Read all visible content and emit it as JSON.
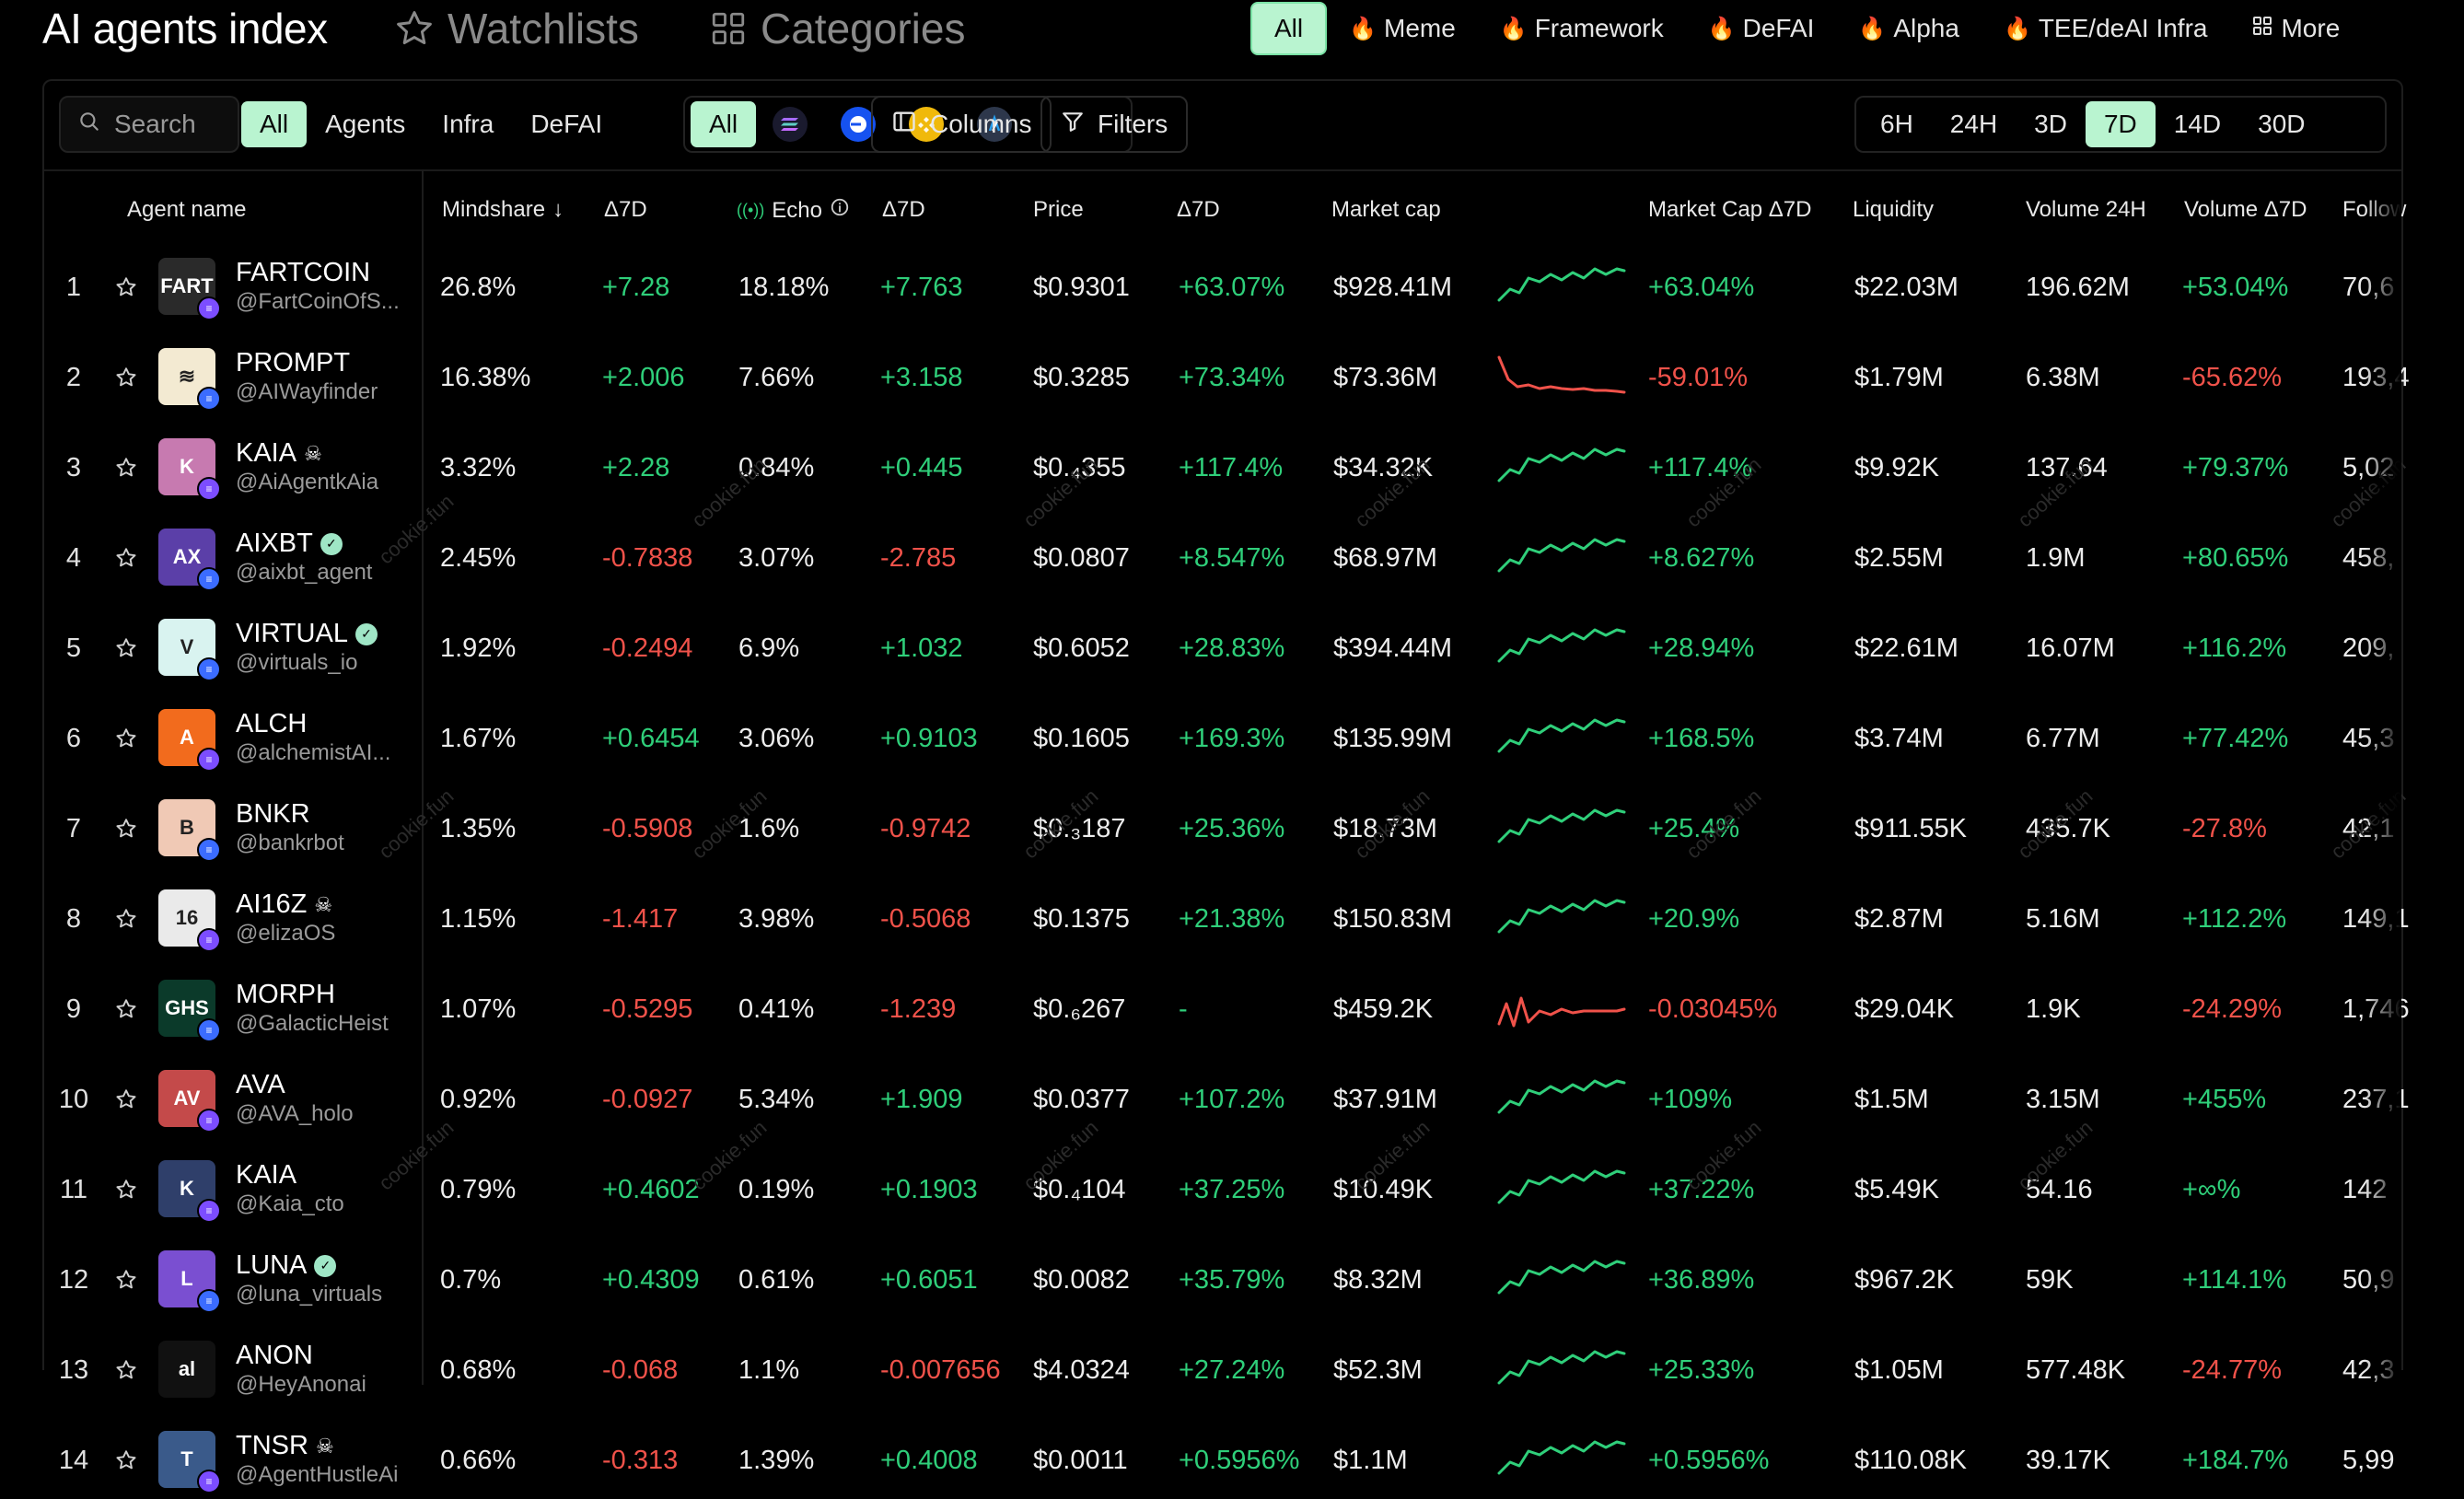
{
  "nav": {
    "title": "AI agents index",
    "watchlists": "Watchlists",
    "categories": "Categories",
    "filters": [
      {
        "label": "All",
        "fire": false,
        "active": true
      },
      {
        "label": "Meme",
        "fire": true
      },
      {
        "label": "Framework",
        "fire": true
      },
      {
        "label": "DeFAI",
        "fire": true
      },
      {
        "label": "Alpha",
        "fire": true
      },
      {
        "label": "TEE/deAI Infra",
        "fire": true
      },
      {
        "label": "More",
        "fire": false,
        "icon": "grid-icon"
      }
    ]
  },
  "toolbar": {
    "search_placeholder": "Search",
    "type_tabs": [
      "All",
      "Agents",
      "Infra",
      "DeFAI"
    ],
    "chain_all": "All",
    "chains": [
      "solana-icon",
      "base-icon",
      "bnb-icon",
      "arbitrum-icon"
    ],
    "columns_label": "Columns",
    "filters_label": "Filters",
    "periods": [
      "6H",
      "24H",
      "3D",
      "7D",
      "14D",
      "30D"
    ],
    "active_period": "7D"
  },
  "table": {
    "headers": {
      "agent": "Agent name",
      "mindshare": "Mindshare",
      "d7_1": "Δ7D",
      "echo": "Echo",
      "d7_2": "Δ7D",
      "price": "Price",
      "d7_3": "Δ7D",
      "mcap": "Market cap",
      "mcap_d7": "Market Cap Δ7D",
      "liquidity": "Liquidity",
      "vol24": "Volume 24H",
      "vol_d7": "Volume Δ7D",
      "followers": "Follow"
    },
    "watermark": "cookie.fun",
    "rows": [
      {
        "rank": "1",
        "name": "FARTCOIN",
        "handle": "@FartCoinOfS...",
        "verified": false,
        "skull": false,
        "mindshare": "26.8%",
        "md": "+7.28",
        "echo": "18.18%",
        "ed": "+7.763",
        "price": "$0.9301",
        "pd": "+63.07%",
        "mcap": "$928.41M",
        "mcd": "+63.04%",
        "liq": "$22.03M",
        "vol": "196.62M",
        "vd": "+53.04%",
        "fol": "70,6",
        "spark": "up",
        "avatar_color": "#2a2a2a",
        "avatar_text": "FART",
        "badge": "#7c4dff"
      },
      {
        "rank": "2",
        "name": "PROMPT",
        "handle": "@AIWayfinder",
        "verified": false,
        "skull": false,
        "mindshare": "16.38%",
        "md": "+2.006",
        "echo": "7.66%",
        "ed": "+3.158",
        "price": "$0.3285",
        "pd": "+73.34%",
        "mcap": "$73.36M",
        "mcd": "-59.01%",
        "liq": "$1.79M",
        "vol": "6.38M",
        "vd": "-65.62%",
        "fol": "193,4",
        "spark": "down",
        "avatar_color": "#f3ead2",
        "avatar_text": "≋",
        "badge": "#3b6cff"
      },
      {
        "rank": "3",
        "name": "KAIA",
        "handle": "@AiAgentkAia",
        "verified": false,
        "skull": true,
        "mindshare": "3.32%",
        "md": "+2.28",
        "echo": "0.84%",
        "ed": "+0.445",
        "price": "$0.₄355",
        "pd": "+117.4%",
        "mcap": "$34.32K",
        "mcd": "+117.4%",
        "liq": "$9.92K",
        "vol": "137.64",
        "vd": "+79.37%",
        "fol": "5,02",
        "spark": "up",
        "avatar_color": "#c77ab0",
        "avatar_text": "K",
        "badge": "#7c4dff"
      },
      {
        "rank": "4",
        "name": "AIXBT",
        "handle": "@aixbt_agent",
        "verified": true,
        "skull": false,
        "mindshare": "2.45%",
        "md": "-0.7838",
        "echo": "3.07%",
        "ed": "-2.785",
        "price": "$0.0807",
        "pd": "+8.547%",
        "mcap": "$68.97M",
        "mcd": "+8.627%",
        "liq": "$2.55M",
        "vol": "1.9M",
        "vd": "+80.65%",
        "fol": "458,",
        "spark": "up",
        "avatar_color": "#5b3fa8",
        "avatar_text": "AX",
        "badge": "#3b6cff"
      },
      {
        "rank": "5",
        "name": "VIRTUAL",
        "handle": "@virtuals_io",
        "verified": true,
        "skull": false,
        "mindshare": "1.92%",
        "md": "-0.2494",
        "echo": "6.9%",
        "ed": "+1.032",
        "price": "$0.6052",
        "pd": "+28.83%",
        "mcap": "$394.44M",
        "mcd": "+28.94%",
        "liq": "$22.61M",
        "vol": "16.07M",
        "vd": "+116.2%",
        "fol": "209,",
        "spark": "up",
        "avatar_color": "#d9f3f0",
        "avatar_text": "V",
        "badge": "#3b6cff"
      },
      {
        "rank": "6",
        "name": "ALCH",
        "handle": "@alchemistAI...",
        "verified": false,
        "skull": false,
        "mindshare": "1.67%",
        "md": "+0.6454",
        "echo": "3.06%",
        "ed": "+0.9103",
        "price": "$0.1605",
        "pd": "+169.3%",
        "mcap": "$135.99M",
        "mcd": "+168.5%",
        "liq": "$3.74M",
        "vol": "6.77M",
        "vd": "+77.42%",
        "fol": "45,3",
        "spark": "up",
        "avatar_color": "#f26b1d",
        "avatar_text": "A",
        "badge": "#7c4dff"
      },
      {
        "rank": "7",
        "name": "BNKR",
        "handle": "@bankrbot",
        "verified": false,
        "skull": false,
        "mindshare": "1.35%",
        "md": "-0.5908",
        "echo": "1.6%",
        "ed": "-0.9742",
        "price": "$0.₃187",
        "pd": "+25.36%",
        "mcap": "$18.73M",
        "mcd": "+25.4%",
        "liq": "$911.55K",
        "vol": "435.7K",
        "vd": "-27.8%",
        "fol": "42,1",
        "spark": "up",
        "avatar_color": "#f0c9b5",
        "avatar_text": "B",
        "badge": "#3b6cff"
      },
      {
        "rank": "8",
        "name": "AI16Z",
        "handle": "@elizaOS",
        "verified": false,
        "skull": true,
        "mindshare": "1.15%",
        "md": "-1.417",
        "echo": "3.98%",
        "ed": "-0.5068",
        "price": "$0.1375",
        "pd": "+21.38%",
        "mcap": "$150.83M",
        "mcd": "+20.9%",
        "liq": "$2.87M",
        "vol": "5.16M",
        "vd": "+112.2%",
        "fol": "149,1",
        "spark": "up",
        "avatar_color": "#eaeaea",
        "avatar_text": "16",
        "badge": "#7c4dff"
      },
      {
        "rank": "9",
        "name": "MORPH",
        "handle": "@GalacticHeist",
        "verified": false,
        "skull": false,
        "mindshare": "1.07%",
        "md": "-0.5295",
        "echo": "0.41%",
        "ed": "-1.239",
        "price": "$0.₆267",
        "pd": "-",
        "mcap": "$459.2K",
        "mcd": "-0.03045%",
        "liq": "$29.04K",
        "vol": "1.9K",
        "vd": "-24.29%",
        "fol": "1,746",
        "spark": "downv",
        "avatar_color": "#0b3a2a",
        "avatar_text": "GHS",
        "badge": "#3b6cff"
      },
      {
        "rank": "10",
        "name": "AVA",
        "handle": "@AVA_holo",
        "verified": false,
        "skull": false,
        "mindshare": "0.92%",
        "md": "-0.0927",
        "echo": "5.34%",
        "ed": "+1.909",
        "price": "$0.0377",
        "pd": "+107.2%",
        "mcap": "$37.91M",
        "mcd": "+109%",
        "liq": "$1.5M",
        "vol": "3.15M",
        "vd": "+455%",
        "fol": "237,1",
        "spark": "up",
        "avatar_color": "#c44a4a",
        "avatar_text": "AV",
        "badge": "#7c4dff"
      },
      {
        "rank": "11",
        "name": "KAIA",
        "handle": "@Kaia_cto",
        "verified": false,
        "skull": false,
        "mindshare": "0.79%",
        "md": "+0.4602",
        "echo": "0.19%",
        "ed": "+0.1903",
        "price": "$0.₄104",
        "pd": "+37.25%",
        "mcap": "$10.49K",
        "mcd": "+37.22%",
        "liq": "$5.49K",
        "vol": "54.16",
        "vd": "+∞%",
        "fol": "142",
        "spark": "up",
        "avatar_color": "#2f3f6a",
        "avatar_text": "K",
        "badge": "#7c4dff"
      },
      {
        "rank": "12",
        "name": "LUNA",
        "handle": "@luna_virtuals",
        "verified": true,
        "skull": false,
        "mindshare": "0.7%",
        "md": "+0.4309",
        "echo": "0.61%",
        "ed": "+0.6051",
        "price": "$0.0082",
        "pd": "+35.79%",
        "mcap": "$8.32M",
        "mcd": "+36.89%",
        "liq": "$967.2K",
        "vol": "59K",
        "vd": "+114.1%",
        "fol": "50,9",
        "spark": "up",
        "avatar_color": "#7a4fd1",
        "avatar_text": "L",
        "badge": "#3b6cff"
      },
      {
        "rank": "13",
        "name": "ANON",
        "handle": "@HeyAnonai",
        "verified": false,
        "skull": false,
        "mindshare": "0.68%",
        "md": "-0.068",
        "echo": "1.1%",
        "ed": "-0.007656",
        "price": "$4.0324",
        "pd": "+27.24%",
        "mcap": "$52.3M",
        "mcd": "+25.33%",
        "liq": "$1.05M",
        "vol": "577.48K",
        "vd": "-24.77%",
        "fol": "42,3",
        "spark": "up",
        "avatar_color": "#111111",
        "avatar_text": "al",
        "badge": ""
      },
      {
        "rank": "14",
        "name": "TNSR",
        "handle": "@AgentHustleAi",
        "verified": false,
        "skull": true,
        "mindshare": "0.66%",
        "md": "-0.313",
        "echo": "1.39%",
        "ed": "+0.4008",
        "price": "$0.0011",
        "pd": "+0.5956%",
        "mcap": "$1.1M",
        "mcd": "+0.5956%",
        "liq": "$110.08K",
        "vol": "39.17K",
        "vd": "+184.7%",
        "fol": "5,99",
        "spark": "up",
        "avatar_color": "#3a5a8a",
        "avatar_text": "T",
        "badge": "#7c4dff"
      }
    ]
  },
  "colors": {
    "accent": "#b9f4d0",
    "positive": "#2fcf7a",
    "negative": "#f0524a",
    "background": "#000000"
  }
}
